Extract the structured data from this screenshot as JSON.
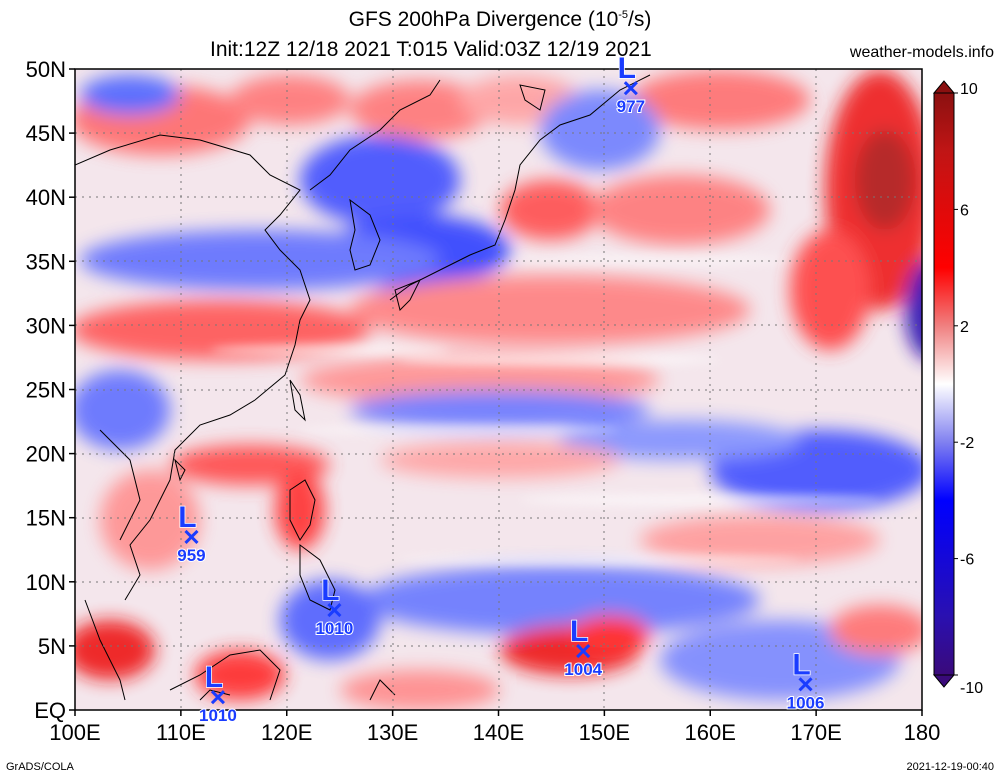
{
  "header": {
    "title_prefix": "GFS 200hPa Divergence (10",
    "title_exponent": "-5",
    "title_suffix": "/s)",
    "subtitle": "Init:12Z 12/18 2021 T:015 Valid:03Z 12/19 2021",
    "site": "weather-models.info"
  },
  "footer": {
    "left": "GrADS/COLA",
    "right": "2021-12-19-00:40"
  },
  "map": {
    "lat_labels": [
      "50N",
      "45N",
      "40N",
      "35N",
      "30N",
      "25N",
      "20N",
      "15N",
      "10N",
      "5N",
      "EQ"
    ],
    "lon_labels": [
      "100E",
      "110E",
      "120E",
      "130E",
      "140E",
      "150E",
      "160E",
      "170E",
      "180"
    ],
    "lat_range": [
      0,
      50
    ],
    "lon_range": [
      100,
      180
    ],
    "gridlines": true
  },
  "colorbar": {
    "labels": [
      "10",
      "6",
      "2",
      "-2",
      "-6",
      "-10"
    ],
    "range": [
      -10,
      10
    ],
    "colors": {
      "max": "#8b1010",
      "pos": "#ff0000",
      "neutral": "#ffffff",
      "neg": "#0000ff",
      "min": "#3a0a7a"
    }
  },
  "lows": [
    {
      "label": "L",
      "pressure": "977",
      "lon": 152.5,
      "lat": 48.5
    },
    {
      "label": "L",
      "pressure": "959",
      "lon": 111,
      "lat": 13.5
    },
    {
      "label": "L",
      "pressure": "1010",
      "lon": 124.5,
      "lat": 7.8
    },
    {
      "label": "L",
      "pressure": "1004",
      "lon": 148,
      "lat": 4.6
    },
    {
      "label": "L",
      "pressure": "1010",
      "lon": 113.5,
      "lat": 1.0
    },
    {
      "label": "L",
      "pressure": "1006",
      "lon": 169,
      "lat": 2.0
    }
  ],
  "colors": {
    "low_marker": "#1a3cff"
  }
}
